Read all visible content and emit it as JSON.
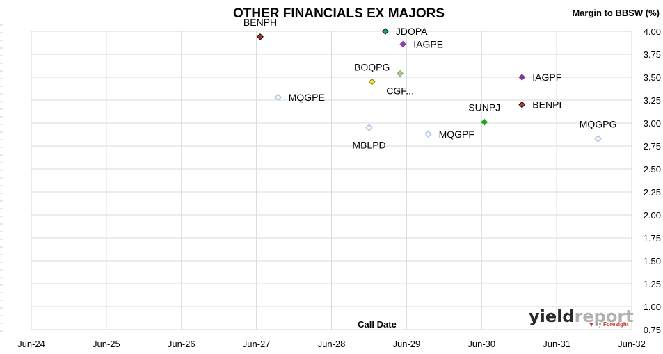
{
  "chart_data": {
    "type": "scatter",
    "title": "OTHER FINANCIALS EX MAJORS",
    "xlabel": "Call Date",
    "ylabel": "Margin to BBSW (%)",
    "x_ticks": [
      "Jun-24",
      "Jun-25",
      "Jun-26",
      "Jun-27",
      "Jun-28",
      "Jun-29",
      "Jun-30",
      "Jun-31",
      "Jun-32"
    ],
    "xlim": [
      "2024-06",
      "2032-06"
    ],
    "y_ticks": [
      "0.75",
      "1.00",
      "1.25",
      "1.50",
      "1.75",
      "2.00",
      "2.25",
      "2.50",
      "2.75",
      "3.00",
      "3.25",
      "3.50",
      "3.75",
      "4.00"
    ],
    "ylim": [
      0.75,
      4.0
    ],
    "y_axis_position": "right",
    "grid": true,
    "points": [
      {
        "label": "BENPH",
        "x": "2027-06-20",
        "y": 3.94,
        "fill": "#a93226",
        "stroke": "#111111",
        "label_pos": "above"
      },
      {
        "label": "JDOPA",
        "x": "2029-02-18",
        "y": 4.0,
        "fill": "#17a589",
        "stroke": "#111111",
        "label_pos": "right"
      },
      {
        "label": "IAGPE",
        "x": "2029-05-15",
        "y": 3.86,
        "fill": "#8e44ad",
        "stroke": "#8e44ad",
        "label_pos": "right"
      },
      {
        "label": "BOQPG",
        "x": "2028-12-15",
        "y": 3.45,
        "fill": "#f4e04d",
        "stroke": "#8a7a00",
        "label_pos": "above"
      },
      {
        "label": "CGF...",
        "x": "2029-05-01",
        "y": 3.54,
        "fill": "#a9d18e",
        "stroke": "#7f9f6f",
        "label_pos": "below"
      },
      {
        "label": "IAGPF",
        "x": "2030-12-15",
        "y": 3.5,
        "fill": "#7d3c98",
        "stroke": "#7d3c98",
        "label_pos": "right"
      },
      {
        "label": "MQGPE",
        "x": "2027-09-15",
        "y": 3.28,
        "fill": "#ffffff",
        "stroke": "#aec7e8",
        "label_pos": "right"
      },
      {
        "label": "BENPI",
        "x": "2030-12-15",
        "y": 3.2,
        "fill": "#c0392b",
        "stroke": "#111111",
        "label_pos": "right"
      },
      {
        "label": "SUNPJ",
        "x": "2030-06-15",
        "y": 3.01,
        "fill": "#1aa81a",
        "stroke": "#1aa81a",
        "label_pos": "above"
      },
      {
        "label": "MBLPD",
        "x": "2028-12-01",
        "y": 2.95,
        "fill": "#ffffff",
        "stroke": "#aec7e8",
        "label_pos": "below"
      },
      {
        "label": "MQGPF",
        "x": "2029-09-15",
        "y": 2.88,
        "fill": "#ffffff",
        "stroke": "#aec7e8",
        "label_pos": "right"
      },
      {
        "label": "MQGPG",
        "x": "2031-12-20",
        "y": 2.83,
        "fill": "#ffffff",
        "stroke": "#aec7e8",
        "label_pos": "above"
      }
    ]
  },
  "branding": {
    "name_part1": "yield",
    "name_part2": "report",
    "by_text": "by",
    "partner": "Foresight",
    "color_main": "#2b2b2b",
    "color_accent": "#b0b0b0"
  }
}
